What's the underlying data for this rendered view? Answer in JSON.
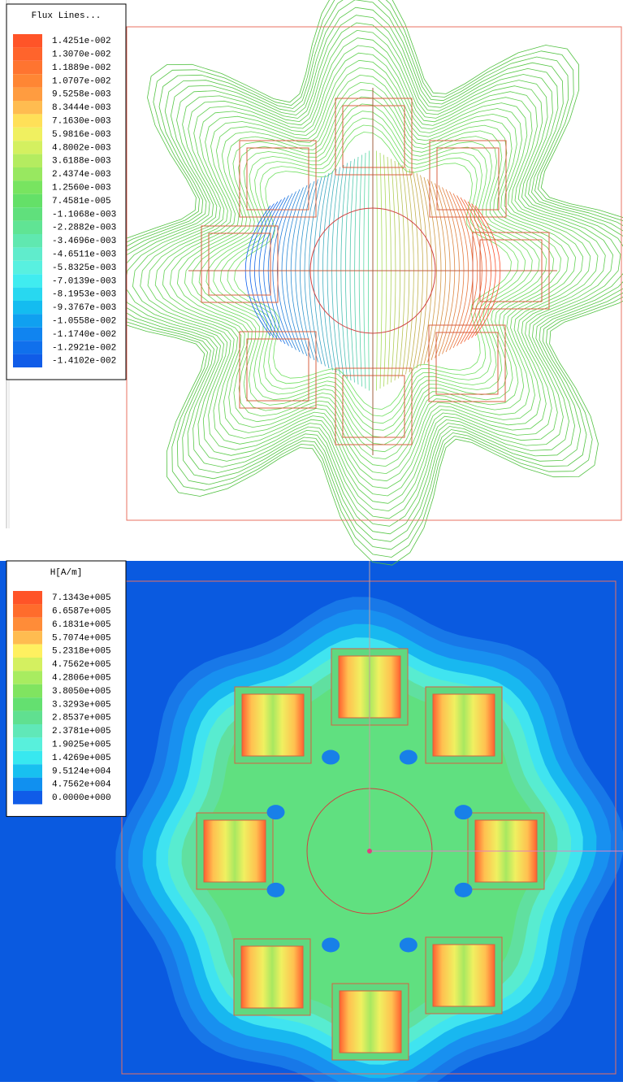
{
  "panels": [
    {
      "title": "Flux Lines...",
      "legend": [
        {
          "label": "1.4251e-002",
          "color": "#ff5428"
        },
        {
          "label": "1.3070e-002",
          "color": "#ff642c"
        },
        {
          "label": "1.1889e-002",
          "color": "#ff7430"
        },
        {
          "label": "1.0707e-002",
          "color": "#ff8634"
        },
        {
          "label": "9.5258e-003",
          "color": "#ff9c40"
        },
        {
          "label": "8.3444e-003",
          "color": "#ffbc50"
        },
        {
          "label": "7.1630e-003",
          "color": "#ffe058"
        },
        {
          "label": "5.9816e-003",
          "color": "#f0f060"
        },
        {
          "label": "4.8002e-003",
          "color": "#d4f060"
        },
        {
          "label": "3.6188e-003",
          "color": "#b4ec60"
        },
        {
          "label": "2.4374e-003",
          "color": "#98e860"
        },
        {
          "label": "1.2560e-003",
          "color": "#78e460"
        },
        {
          "label": "7.4581e-005",
          "color": "#64e068"
        },
        {
          "label": "-1.1068e-003",
          "color": "#60e07c"
        },
        {
          "label": "-2.2882e-003",
          "color": "#60e494"
        },
        {
          "label": "-3.4696e-003",
          "color": "#60e8b0"
        },
        {
          "label": "-4.6511e-003",
          "color": "#60eccc"
        },
        {
          "label": "-5.8325e-003",
          "color": "#58f0e0"
        },
        {
          "label": "-7.0139e-003",
          "color": "#40ecf0"
        },
        {
          "label": "-8.1953e-003",
          "color": "#28d8f0"
        },
        {
          "label": "-9.3767e-003",
          "color": "#14bcf0"
        },
        {
          "label": "-1.0558e-002",
          "color": "#10a0f0"
        },
        {
          "label": "-1.1740e-002",
          "color": "#1084f0"
        },
        {
          "label": "-1.2921e-002",
          "color": "#1070ec"
        },
        {
          "label": "-1.4102e-002",
          "color": "#105ce8"
        }
      ]
    },
    {
      "title": "H[A/m]",
      "legend": [
        {
          "label": "7.1343e+005",
          "color": "#ff5428"
        },
        {
          "label": "6.6587e+005",
          "color": "#ff6c2c"
        },
        {
          "label": "6.1831e+005",
          "color": "#ff8c38"
        },
        {
          "label": "5.7074e+005",
          "color": "#ffbc50"
        },
        {
          "label": "5.2318e+005",
          "color": "#fff060"
        },
        {
          "label": "4.7562e+005",
          "color": "#d4f060"
        },
        {
          "label": "4.2806e+005",
          "color": "#a8ec60"
        },
        {
          "label": "3.8050e+005",
          "color": "#80e460"
        },
        {
          "label": "3.3293e+005",
          "color": "#64e070"
        },
        {
          "label": "2.8537e+005",
          "color": "#60e090"
        },
        {
          "label": "2.3781e+005",
          "color": "#60e8b8"
        },
        {
          "label": "1.9025e+005",
          "color": "#58f0dc"
        },
        {
          "label": "1.4269e+005",
          "color": "#38e8f0"
        },
        {
          "label": "9.5124e+004",
          "color": "#18c0f0"
        },
        {
          "label": "4.7562e+004",
          "color": "#1090f0"
        },
        {
          "label": "0.0000e+000",
          "color": "#105ce8"
        }
      ]
    }
  ]
}
